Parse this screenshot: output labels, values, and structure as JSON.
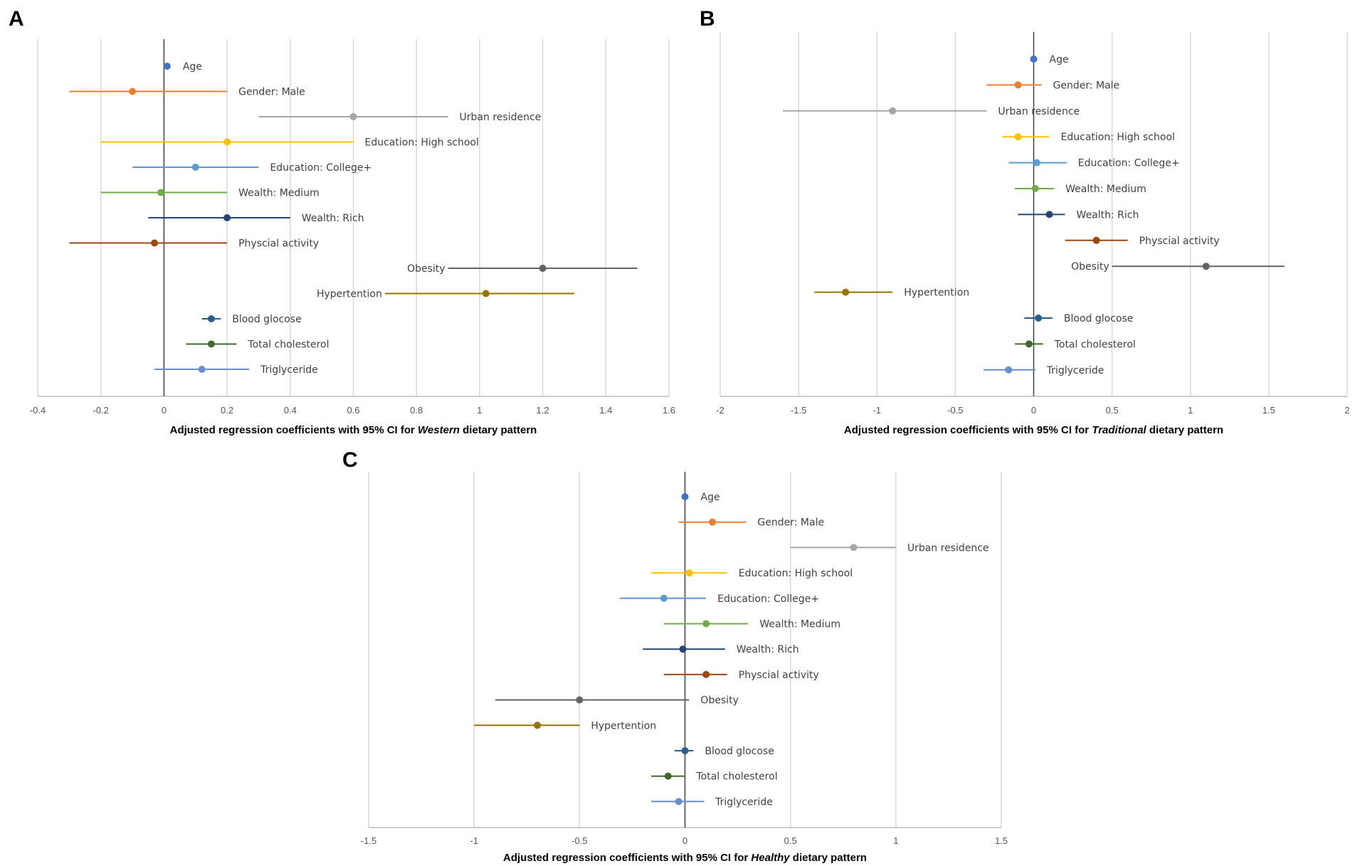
{
  "chart_data": [
    {
      "panel": "A",
      "type": "forest",
      "xlabel_prefix": "Adjusted regression coefficients with 95% CI for",
      "xlabel_italic": "Western",
      "xlabel_suffix": "dietary pattern",
      "xlim": [
        -0.4,
        1.6
      ],
      "ticks": [
        -0.4,
        -0.2,
        0,
        0.2,
        0.4,
        0.6,
        0.8,
        1,
        1.2,
        1.4,
        1.6
      ],
      "tick_labels": [
        "-0.4",
        "-0.2",
        "0",
        "0.2",
        "0.4",
        "0.6",
        "0.8",
        "1",
        "1.2",
        "1.4",
        "1.6"
      ],
      "grid": true,
      "rows": [
        {
          "label": "Age",
          "est": 0.01,
          "lo": 0.005,
          "hi": 0.015,
          "color": "#4472C4",
          "label_side": "right"
        },
        {
          "label": "Gender: Male",
          "est": -0.1,
          "lo": -0.3,
          "hi": 0.2,
          "color": "#ED7D31",
          "label_side": "right"
        },
        {
          "label": "Urban residence",
          "est": 0.6,
          "lo": 0.3,
          "hi": 0.9,
          "color": "#A5A5A5",
          "label_side": "right"
        },
        {
          "label": "Education: High school",
          "est": 0.2,
          "lo": -0.2,
          "hi": 0.6,
          "color": "#FFC000",
          "label_side": "right"
        },
        {
          "label": "Education: College+",
          "est": 0.1,
          "lo": -0.1,
          "hi": 0.3,
          "color": "#5B9BD5",
          "label_side": "right"
        },
        {
          "label": "Wealth: Medium",
          "est": -0.01,
          "lo": -0.2,
          "hi": 0.2,
          "color": "#70AD47",
          "label_side": "right"
        },
        {
          "label": "Wealth: Rich",
          "est": 0.2,
          "lo": -0.05,
          "hi": 0.4,
          "color": "#264478",
          "label_side": "right"
        },
        {
          "label": "Physcial activity",
          "est": -0.03,
          "lo": -0.3,
          "hi": 0.2,
          "color": "#9E480E",
          "label_side": "right"
        },
        {
          "label": "Obesity",
          "est": 1.2,
          "lo": 0.9,
          "hi": 1.5,
          "color": "#636363",
          "label_side": "left"
        },
        {
          "label": "Hypertention",
          "est": 1.02,
          "lo": 0.7,
          "hi": 1.3,
          "color": "#997300",
          "label_side": "left"
        },
        {
          "label": "Blood glocose",
          "est": 0.15,
          "lo": 0.12,
          "hi": 0.18,
          "color": "#255E91",
          "label_side": "right"
        },
        {
          "label": "Total cholesterol",
          "est": 0.15,
          "lo": 0.07,
          "hi": 0.23,
          "color": "#43682B",
          "label_side": "right"
        },
        {
          "label": "Triglyceride",
          "est": 0.12,
          "lo": -0.03,
          "hi": 0.27,
          "color": "#698ED0",
          "label_side": "right"
        }
      ]
    },
    {
      "panel": "B",
      "type": "forest",
      "xlabel_prefix": "Adjusted regression coefficients with 95% CI for",
      "xlabel_italic": "Traditional",
      "xlabel_suffix": "dietary pattern",
      "xlim": [
        -2,
        2
      ],
      "ticks": [
        -2,
        -1.5,
        -1,
        -0.5,
        0,
        0.5,
        1,
        1.5,
        2
      ],
      "tick_labels": [
        "-2",
        "-1.5",
        "-1",
        "-0.5",
        "0",
        "0.5",
        "1",
        "1.5",
        "2"
      ],
      "grid": true,
      "rows": [
        {
          "label": "Age",
          "est": 0.0,
          "lo": -0.01,
          "hi": 0.01,
          "color": "#4472C4",
          "label_side": "right"
        },
        {
          "label": "Gender: Male",
          "est": -0.1,
          "lo": -0.3,
          "hi": 0.05,
          "color": "#ED7D31",
          "label_side": "right"
        },
        {
          "label": "Urban residence",
          "est": -0.9,
          "lo": -1.6,
          "hi": -0.3,
          "color": "#A5A5A5",
          "label_side": "right"
        },
        {
          "label": "Education: High school",
          "est": -0.1,
          "lo": -0.2,
          "hi": 0.1,
          "color": "#FFC000",
          "label_side": "right"
        },
        {
          "label": "Education: College+",
          "est": 0.02,
          "lo": -0.16,
          "hi": 0.21,
          "color": "#5B9BD5",
          "label_side": "right"
        },
        {
          "label": "Wealth: Medium",
          "est": 0.01,
          "lo": -0.12,
          "hi": 0.13,
          "color": "#70AD47",
          "label_side": "right"
        },
        {
          "label": "Wealth: Rich",
          "est": 0.1,
          "lo": -0.1,
          "hi": 0.2,
          "color": "#264478",
          "label_side": "right"
        },
        {
          "label": "Physcial activity",
          "est": 0.4,
          "lo": 0.2,
          "hi": 0.6,
          "color": "#9E480E",
          "label_side": "right"
        },
        {
          "label": "Obesity",
          "est": 1.1,
          "lo": 0.5,
          "hi": 1.6,
          "color": "#636363",
          "label_side": "left"
        },
        {
          "label": "Hypertention",
          "est": -1.2,
          "lo": -1.4,
          "hi": -0.9,
          "color": "#997300",
          "label_side": "right"
        },
        {
          "label": "Blood glocose",
          "est": 0.03,
          "lo": -0.06,
          "hi": 0.12,
          "color": "#255E91",
          "label_side": "right"
        },
        {
          "label": "Total cholesterol",
          "est": -0.03,
          "lo": -0.12,
          "hi": 0.06,
          "color": "#43682B",
          "label_side": "right"
        },
        {
          "label": "Triglyceride",
          "est": -0.16,
          "lo": -0.32,
          "hi": 0.01,
          "color": "#698ED0",
          "label_side": "right"
        }
      ]
    },
    {
      "panel": "C",
      "type": "forest",
      "xlabel_prefix": "Adjusted regression coefficients with 95% CI for",
      "xlabel_italic": "Healthy",
      "xlabel_suffix": "dietary pattern",
      "xlim": [
        -1.5,
        1.5
      ],
      "ticks": [
        -1.5,
        -1,
        -0.5,
        0,
        0.5,
        1,
        1.5
      ],
      "tick_labels": [
        "-1.5",
        "-1",
        "-0.5",
        "0",
        "0.5",
        "1",
        "1.5"
      ],
      "grid": true,
      "rows": [
        {
          "label": "Age",
          "est": 0.0,
          "lo": -0.01,
          "hi": 0.01,
          "color": "#4472C4",
          "label_side": "right"
        },
        {
          "label": "Gender: Male",
          "est": 0.13,
          "lo": -0.03,
          "hi": 0.29,
          "color": "#ED7D31",
          "label_side": "right"
        },
        {
          "label": "Urban residence",
          "est": 0.8,
          "lo": 0.5,
          "hi": 1.0,
          "color": "#A5A5A5",
          "label_side": "right"
        },
        {
          "label": "Education: High school",
          "est": 0.02,
          "lo": -0.16,
          "hi": 0.2,
          "color": "#FFC000",
          "label_side": "right"
        },
        {
          "label": "Education: College+",
          "est": -0.1,
          "lo": -0.31,
          "hi": 0.1,
          "color": "#5B9BD5",
          "label_side": "right"
        },
        {
          "label": "Wealth: Medium",
          "est": 0.1,
          "lo": -0.1,
          "hi": 0.3,
          "color": "#70AD47",
          "label_side": "right"
        },
        {
          "label": "Wealth: Rich",
          "est": -0.01,
          "lo": -0.2,
          "hi": 0.19,
          "color": "#264478",
          "label_side": "right"
        },
        {
          "label": "Physcial activity",
          "est": 0.1,
          "lo": -0.1,
          "hi": 0.2,
          "color": "#9E480E",
          "label_side": "right"
        },
        {
          "label": "Obesity",
          "est": -0.5,
          "lo": -0.9,
          "hi": 0.02,
          "color": "#636363",
          "label_side": "right"
        },
        {
          "label": "Hypertention",
          "est": -0.7,
          "lo": -1.0,
          "hi": -0.5,
          "color": "#997300",
          "label_side": "right"
        },
        {
          "label": "Blood glocose",
          "est": 0.0,
          "lo": -0.05,
          "hi": 0.04,
          "color": "#255E91",
          "label_side": "right"
        },
        {
          "label": "Total cholesterol",
          "est": -0.08,
          "lo": -0.16,
          "hi": 0.0,
          "color": "#43682B",
          "label_side": "right"
        },
        {
          "label": "Triglyceride",
          "est": -0.03,
          "lo": -0.16,
          "hi": 0.09,
          "color": "#698ED0",
          "label_side": "right"
        }
      ]
    }
  ]
}
